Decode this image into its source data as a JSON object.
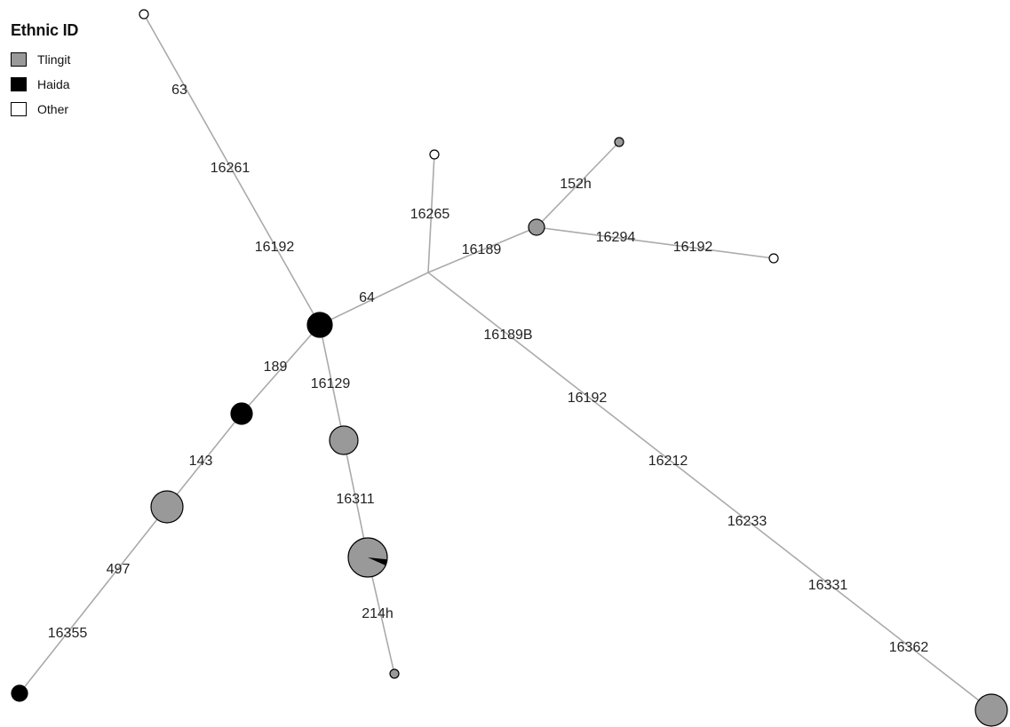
{
  "legend": {
    "title": "Ethnic ID",
    "items": [
      {
        "label": "Tlingit",
        "color": "#999999"
      },
      {
        "label": "Haida",
        "color": "#000000"
      },
      {
        "label": "Other",
        "color": "#ffffff"
      }
    ]
  },
  "network": {
    "edge_color": "#aaaaaa",
    "edges": [
      {
        "from": "other-top",
        "to": "haida-central",
        "labels": [
          "63",
          "16261",
          "16192"
        ]
      },
      {
        "from": "haida-central",
        "to": "median-vector",
        "labels": [
          "64"
        ]
      },
      {
        "from": "median-vector",
        "to": "other-mid",
        "labels": [
          "16265"
        ]
      },
      {
        "from": "median-vector",
        "to": "tlingit-east",
        "labels": [
          "16189"
        ]
      },
      {
        "from": "tlingit-east",
        "to": "tlingit-ne",
        "labels": [
          "152h"
        ]
      },
      {
        "from": "tlingit-east",
        "to": "other-east",
        "labels": [
          "16294",
          "16192"
        ]
      },
      {
        "from": "median-vector",
        "to": "tlingit-se",
        "labels": [
          "16189B",
          "16192",
          "16212",
          "16233",
          "16331",
          "16362"
        ]
      },
      {
        "from": "haida-central",
        "to": "haida-mid",
        "labels": [
          "189"
        ]
      },
      {
        "from": "haida-mid",
        "to": "tlingit-sw",
        "labels": [
          "143"
        ]
      },
      {
        "from": "tlingit-sw",
        "to": "haida-sw",
        "labels": [
          "497",
          "16355"
        ]
      },
      {
        "from": "haida-central",
        "to": "tlingit-center",
        "labels": [
          "16129"
        ]
      },
      {
        "from": "tlingit-center",
        "to": "mixed-south",
        "labels": [
          "16311"
        ]
      },
      {
        "from": "mixed-south",
        "to": "tlingit-south",
        "labels": [
          "214h"
        ]
      }
    ],
    "nodes": [
      {
        "id": "other-top",
        "type": "other"
      },
      {
        "id": "haida-central",
        "type": "haida"
      },
      {
        "id": "median-vector",
        "type": "median"
      },
      {
        "id": "other-mid",
        "type": "other"
      },
      {
        "id": "tlingit-east",
        "type": "tlingit"
      },
      {
        "id": "tlingit-ne",
        "type": "tlingit"
      },
      {
        "id": "other-east",
        "type": "other"
      },
      {
        "id": "tlingit-se",
        "type": "tlingit"
      },
      {
        "id": "haida-mid",
        "type": "haida"
      },
      {
        "id": "tlingit-sw",
        "type": "tlingit"
      },
      {
        "id": "haida-sw",
        "type": "haida"
      },
      {
        "id": "tlingit-center",
        "type": "tlingit"
      },
      {
        "id": "mixed-south",
        "type": "mixed",
        "composition": {
          "tlingit": 0.95,
          "haida": 0.05
        }
      },
      {
        "id": "tlingit-south",
        "type": "tlingit"
      }
    ]
  }
}
